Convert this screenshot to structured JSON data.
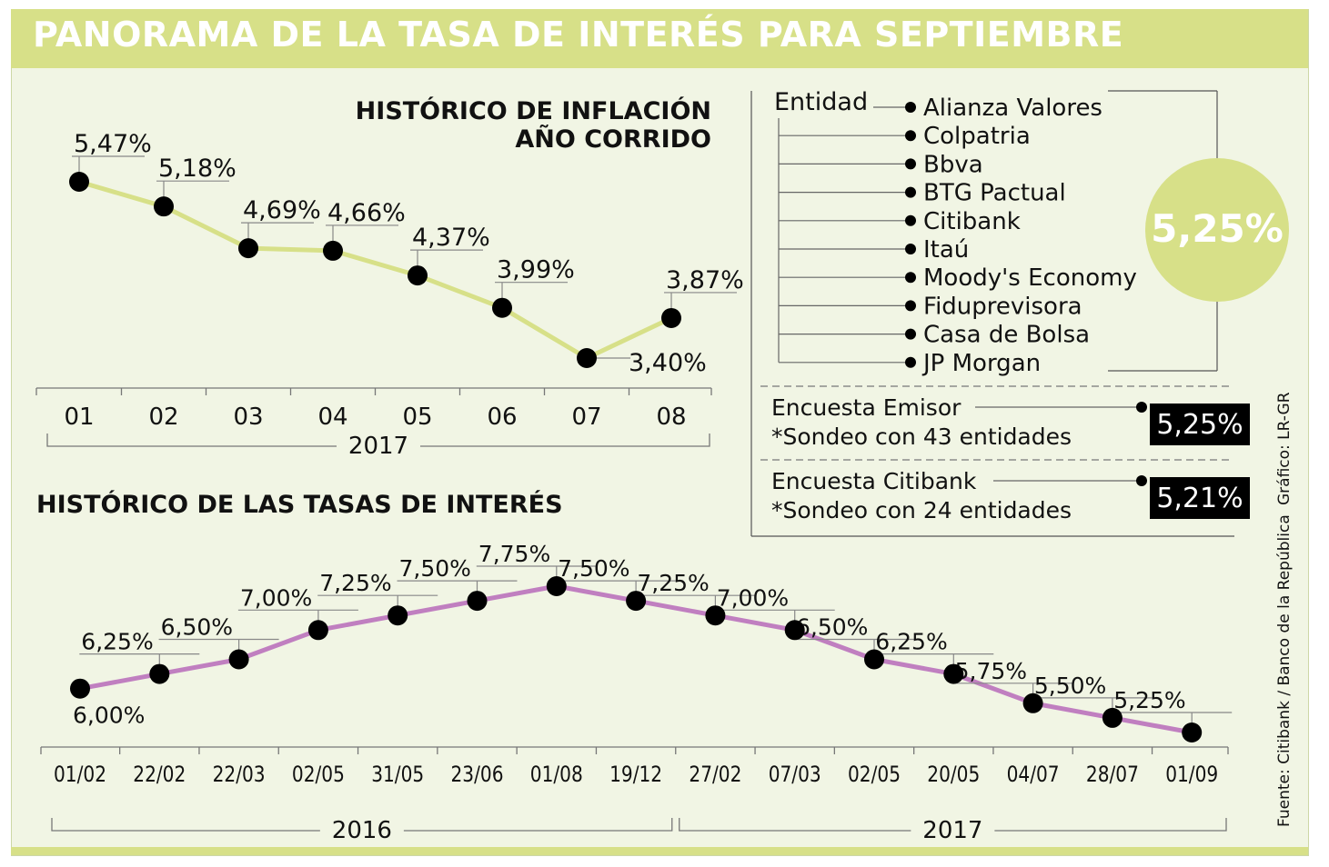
{
  "title": "PANORAMA DE LA TASA DE INTERÉS PARA SEPTIEMBRE",
  "colors": {
    "header": "#d7e088",
    "background": "#f1f5e4",
    "inflation_line": "#d7e088",
    "rates_line": "#c07fc0",
    "circle": "#d7e088",
    "box": "#000000"
  },
  "chart_data": [
    {
      "type": "line",
      "title": "HISTÓRICO DE INFLACIÓN AÑO CORRIDO",
      "title_lines": [
        "HISTÓRICO DE INFLACIÓN",
        "AÑO CORRIDO"
      ],
      "categories": [
        "01",
        "02",
        "03",
        "04",
        "05",
        "06",
        "07",
        "08"
      ],
      "values": [
        5.47,
        5.18,
        4.69,
        4.66,
        4.37,
        3.99,
        3.4,
        3.87
      ],
      "labels": [
        "5,47%",
        "5,18%",
        "4,69%",
        "4,66%",
        "4,37%",
        "3,99%",
        "3,40%",
        "3,87%"
      ],
      "year_groups": [
        {
          "label": "2017",
          "from": 0,
          "to": 7
        }
      ],
      "ylim": [
        3.2,
        5.6
      ],
      "grid": false
    },
    {
      "type": "line",
      "title": "HISTÓRICO DE LAS TASAS DE INTERÉS",
      "categories": [
        "01/02",
        "22/02",
        "22/03",
        "02/05",
        "31/05",
        "23/06",
        "01/08",
        "19/12",
        "27/02",
        "07/03",
        "02/05",
        "20/05",
        "04/07",
        "28/07",
        "01/09"
      ],
      "values": [
        6.0,
        6.25,
        6.5,
        7.0,
        7.25,
        7.5,
        7.75,
        7.5,
        7.25,
        7.0,
        6.5,
        6.25,
        5.75,
        5.5,
        5.25
      ],
      "labels": [
        "6,00%",
        "6,25%",
        "6,50%",
        "7,00%",
        "7,25%",
        "7,50%",
        "7,75%",
        "7,50%",
        "7,25%",
        "7,00%",
        "6,50%",
        "6,25%",
        "5,75%",
        "5,50%",
        "5,25%"
      ],
      "year_groups": [
        {
          "label": "2016",
          "from": 0,
          "to": 7
        },
        {
          "label": "2017",
          "from": 8,
          "to": 14
        }
      ],
      "ylim": [
        5.0,
        8.0
      ],
      "grid": false
    }
  ],
  "survey": {
    "header": "Entidad",
    "entities": [
      "Alianza Valores",
      "Colpatria",
      "Bbva",
      "BTG Pactual",
      "Citibank",
      "Itaú",
      "Moody's Economy",
      "Fiduprevisora",
      "Casa de Bolsa",
      "JP Morgan"
    ],
    "consensus": "5,25%",
    "surveys": [
      {
        "name": "Encuesta Emisor",
        "note": "*Sondeo con 43 entidades",
        "value": "5,25%"
      },
      {
        "name": "Encuesta Citibank",
        "note": "*Sondeo con 24 entidades",
        "value": "5,21%"
      }
    ]
  },
  "credits": {
    "graphic": "Gráfico: LR-GR",
    "source": "Fuente: Citibank / Banco de la República"
  }
}
